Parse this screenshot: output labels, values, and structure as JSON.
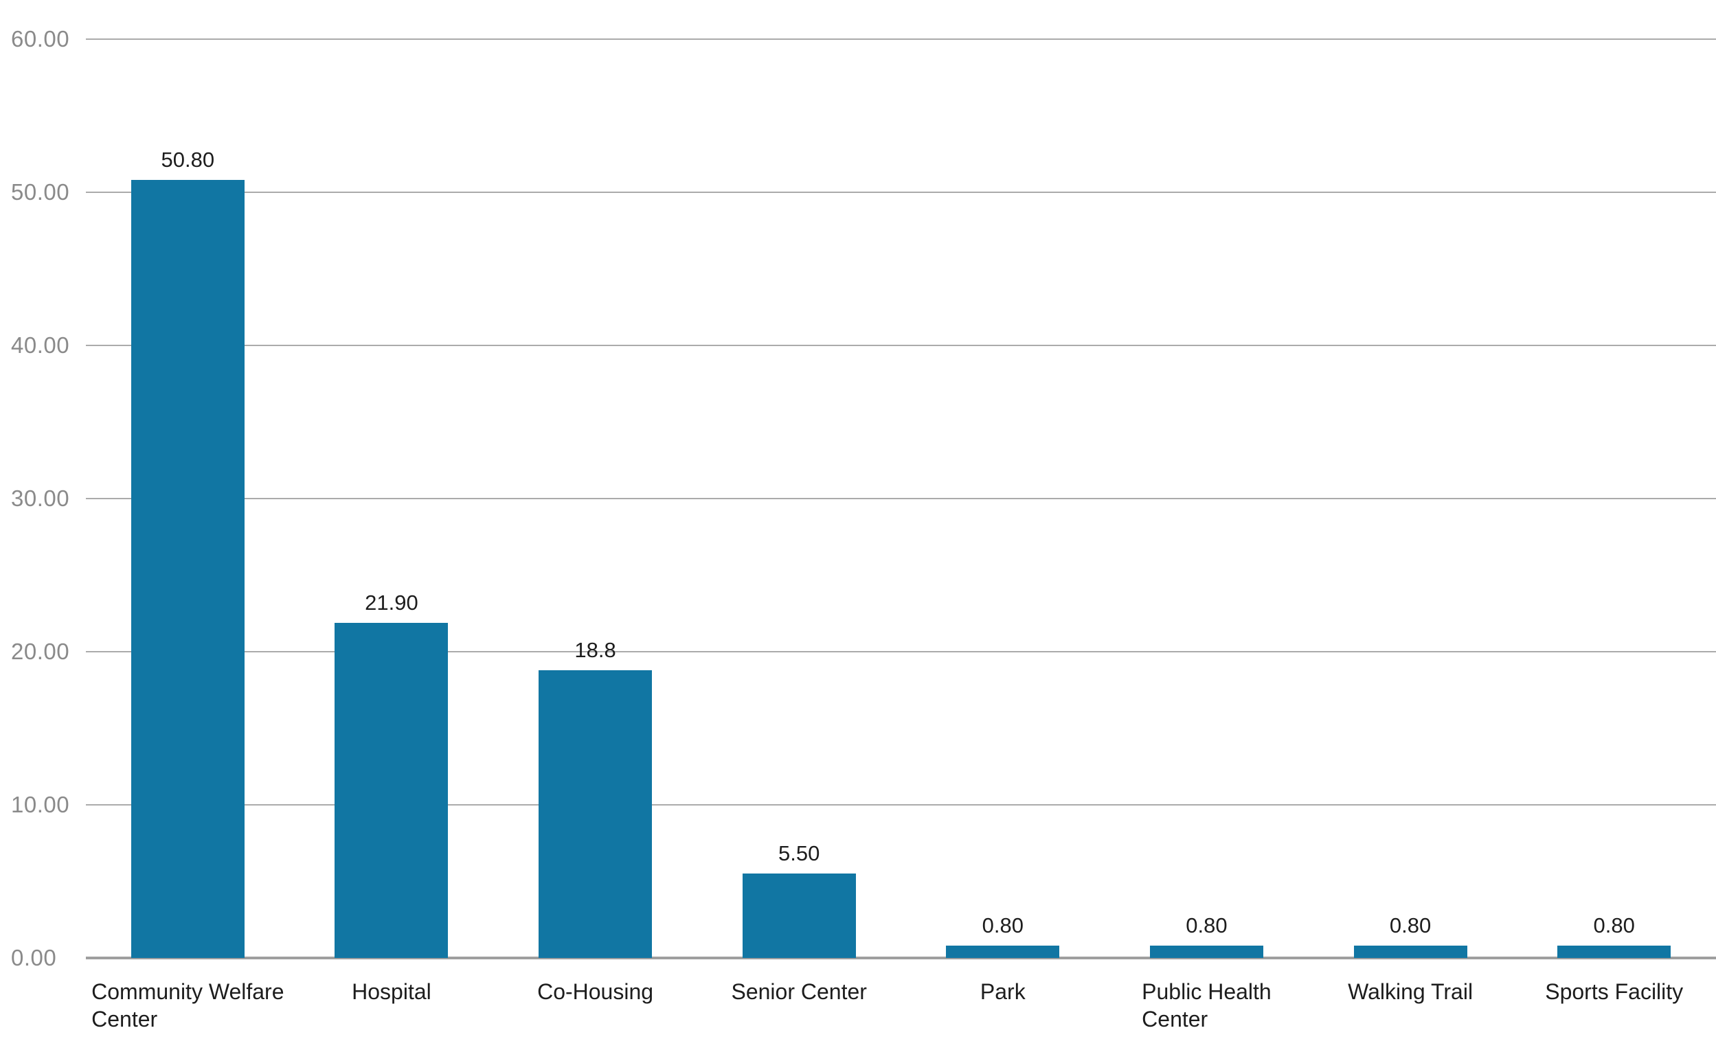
{
  "chart_data": {
    "type": "bar",
    "title": "",
    "xlabel": "",
    "ylabel": "",
    "categories": [
      "Community Welfare Center",
      "Hospital",
      "Co-Housing",
      "Senior Center",
      "Park",
      "Public Health Center",
      "Walking Trail",
      "Sports Facility"
    ],
    "category_display_lines": [
      [
        "Community Welfare",
        "Center"
      ],
      [
        "Hospital"
      ],
      [
        "Co-Housing"
      ],
      [
        "Senior Center"
      ],
      [
        "Park"
      ],
      [
        "Public Health",
        "Center"
      ],
      [
        "Walking Trail"
      ],
      [
        "Sports Facility"
      ]
    ],
    "values": [
      50.8,
      21.9,
      18.8,
      5.5,
      0.8,
      0.8,
      0.8,
      0.8
    ],
    "value_labels": [
      "50.80",
      "21.90",
      "18.8",
      "5.50",
      "0.80",
      "0.80",
      "0.80",
      "0.80"
    ],
    "ylim": [
      0,
      60
    ],
    "ytick_values": [
      0,
      10,
      20,
      30,
      40,
      50,
      60
    ],
    "ytick_labels": [
      "0.00",
      "10.00",
      "20.00",
      "30.00",
      "40.00",
      "50.00",
      "60.00"
    ],
    "grid": true,
    "legend": false,
    "colors": {
      "bar": "#1176a3",
      "gridline": "#ababab",
      "axis_line": "#9f9f9f",
      "tick_label": "#8a8a8a",
      "data_label": "#1d1d1d",
      "category_label": "#1d1d1d",
      "background": "#ffffff"
    }
  }
}
